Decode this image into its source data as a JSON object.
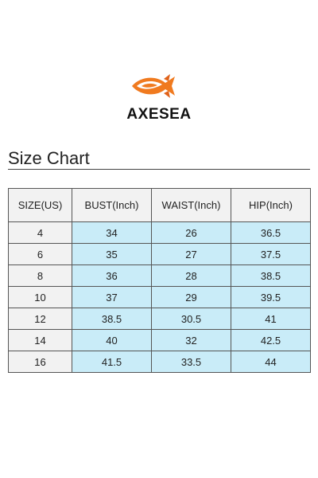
{
  "brand": {
    "name": "AXESEA",
    "logo_icon": "fish-logo-icon",
    "logo_color": "#f07a1f"
  },
  "page": {
    "title": "Size Chart"
  },
  "size_table": {
    "headers": [
      "SIZE(US)",
      "BUST(Inch)",
      "WAIST(Inch)",
      "HIP(Inch)"
    ],
    "rows": [
      [
        "4",
        "34",
        "26",
        "36.5"
      ],
      [
        "6",
        "35",
        "27",
        "37.5"
      ],
      [
        "8",
        "36",
        "28",
        "38.5"
      ],
      [
        "10",
        "37",
        "29",
        "39.5"
      ],
      [
        "12",
        "38.5",
        "30.5",
        "41"
      ],
      [
        "14",
        "40",
        "32",
        "42.5"
      ],
      [
        "16",
        "41.5",
        "33.5",
        "44"
      ]
    ],
    "colors": {
      "header_bg": "#f2f2f2",
      "size_bg": "#f2f2f2",
      "value_bg": "#c9ecf8"
    }
  }
}
